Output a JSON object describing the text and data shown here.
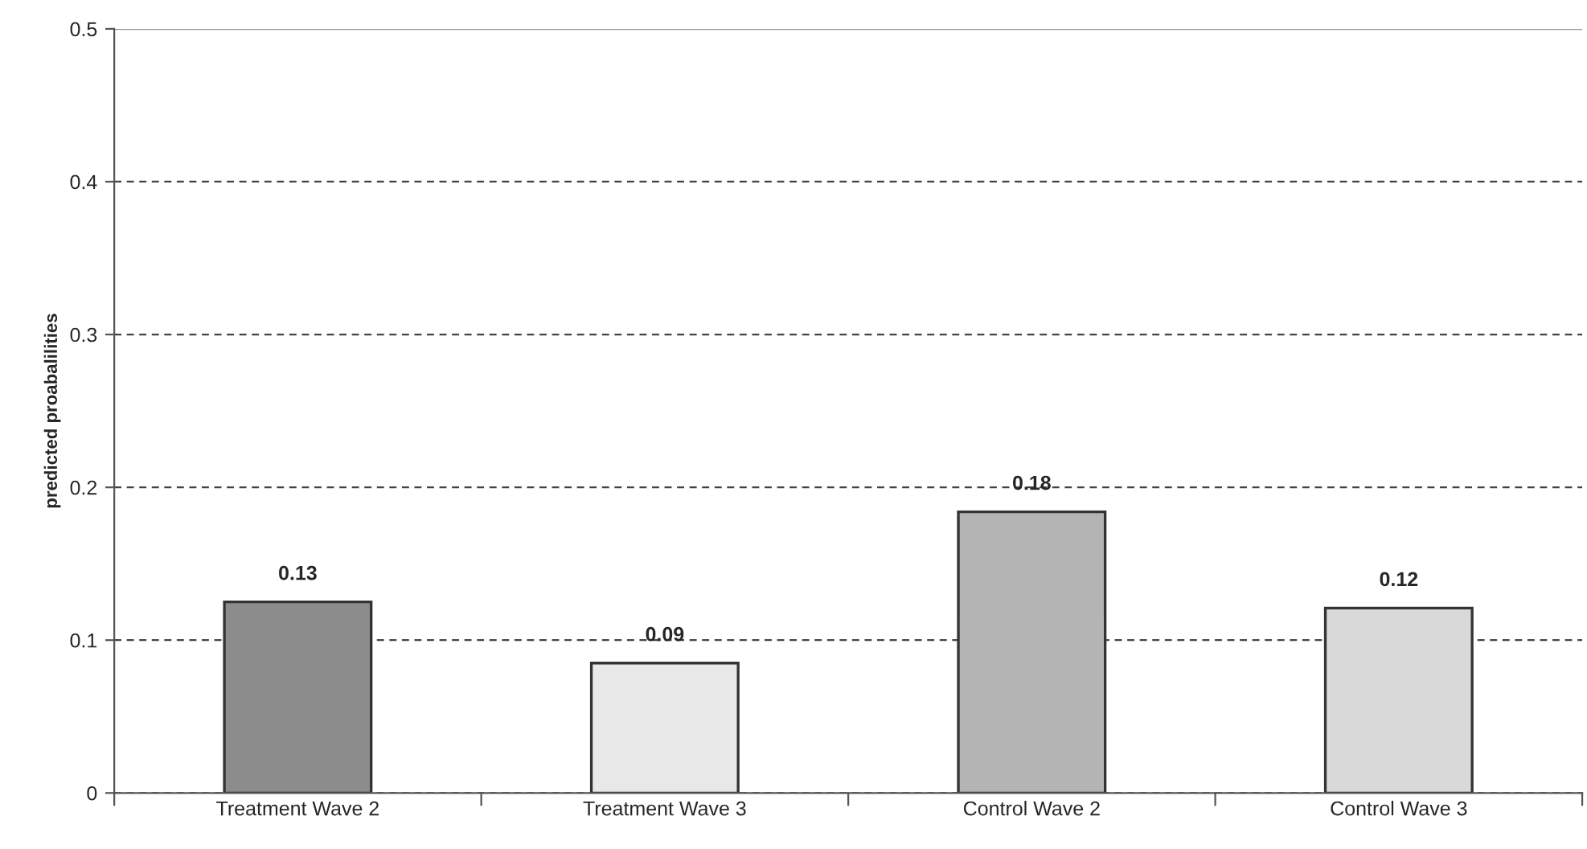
{
  "chart_data": {
    "type": "bar",
    "ylabel": "predicted proabalilities",
    "categories": [
      "Treatment Wave 2",
      "Treatment Wave 3",
      "Control Wave 2",
      "Control Wave 3"
    ],
    "values": [
      0.125,
      0.085,
      0.184,
      0.121
    ],
    "value_labels": [
      "0.13",
      "0.09",
      "0.18",
      "0.12"
    ],
    "colors": [
      "#8c8c8c",
      "#e8e8e8",
      "#b4b4b4",
      "#d9d9d9"
    ],
    "ylim": [
      0,
      0.5
    ],
    "yticks": [
      0,
      0.1,
      0.2,
      0.3,
      0.4,
      0.5
    ],
    "grid": "y",
    "legend": false
  }
}
